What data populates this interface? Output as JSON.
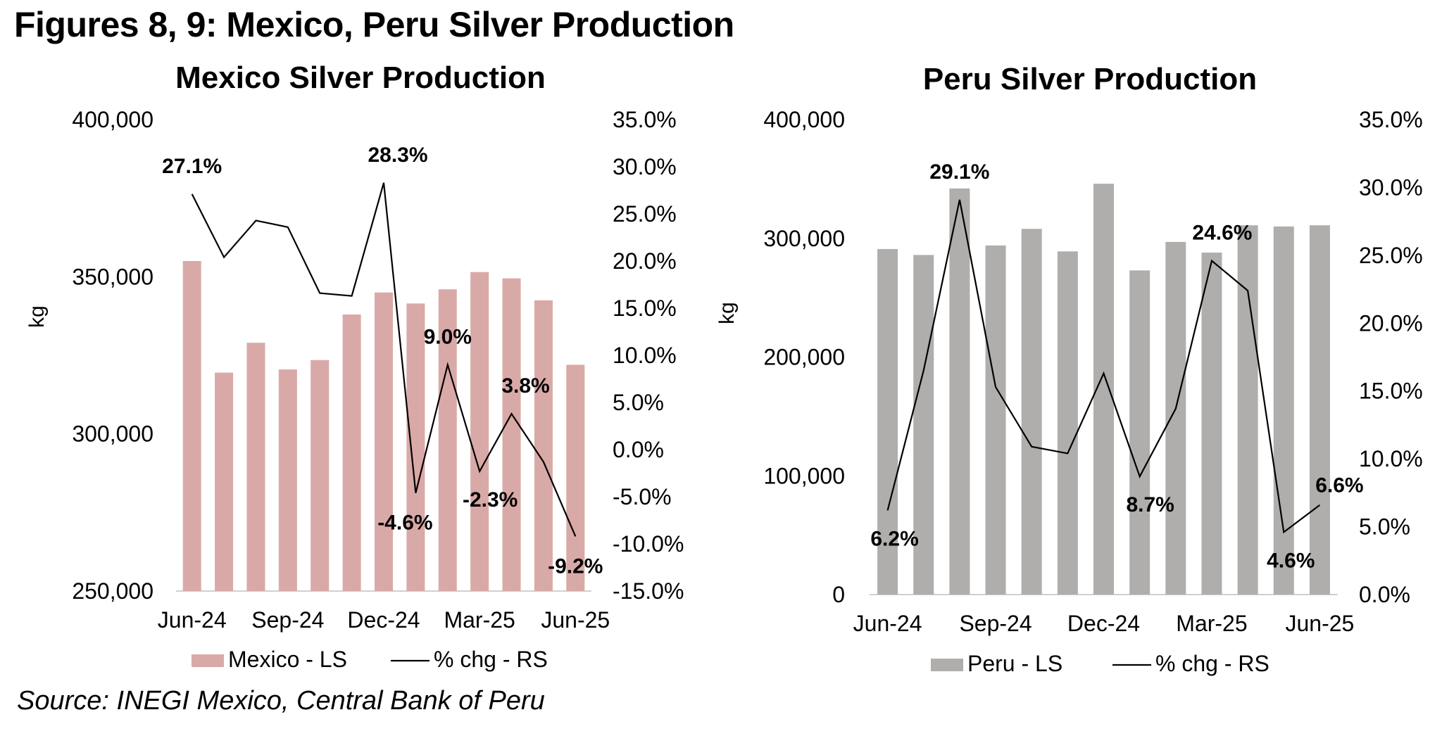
{
  "figure_title": "Figures 8, 9: Mexico, Peru Silver Production",
  "source": "Source: INEGI Mexico, Central Bank of Peru",
  "colors": {
    "mexico_bar": "#d9a9a8",
    "peru_bar": "#b0aeac",
    "line": "#000000"
  },
  "chart_data": [
    {
      "type": "bar",
      "title": "Mexico Silver Production",
      "ylabel": "kg",
      "categories": [
        "Jun-24",
        "Jul-24",
        "Aug-24",
        "Sep-24",
        "Oct-24",
        "Nov-24",
        "Dec-24",
        "Jan-25",
        "Feb-25",
        "Mar-25",
        "Apr-25",
        "May-25",
        "Jun-25"
      ],
      "x_tick_labels": [
        "Jun-24",
        "Sep-24",
        "Dec-24",
        "Mar-25",
        "Jun-25"
      ],
      "left_axis": {
        "ylim": [
          250000,
          400000
        ],
        "ticks": [
          "400,000",
          "350,000",
          "300,000",
          "250,000"
        ]
      },
      "right_axis": {
        "ylim": [
          -15.0,
          35.0
        ],
        "ticks": [
          "35.0%",
          "30.0%",
          "25.0%",
          "20.0%",
          "15.0%",
          "10.0%",
          "5.0%",
          "0.0%",
          "-5.0%",
          "-10.0%",
          "-15.0%"
        ]
      },
      "series": [
        {
          "name": "Mexico - LS",
          "kind": "bar",
          "axis": "left",
          "values": [
            355000,
            319500,
            329000,
            320500,
            323500,
            338000,
            345000,
            341500,
            346000,
            351500,
            349500,
            342500,
            322000
          ]
        },
        {
          "name": "% chg - RS",
          "kind": "line",
          "axis": "right",
          "values": [
            27.1,
            20.4,
            24.3,
            23.6,
            16.6,
            16.3,
            28.3,
            -4.6,
            9.0,
            -2.3,
            3.8,
            -1.3,
            -9.2
          ]
        }
      ],
      "annotations": [
        {
          "index": 0,
          "text": "27.1%"
        },
        {
          "index": 6,
          "text": "28.3%"
        },
        {
          "index": 7,
          "text": "-4.6%"
        },
        {
          "index": 8,
          "text": "9.0%"
        },
        {
          "index": 9,
          "text": "-2.3%"
        },
        {
          "index": 10,
          "text": "3.8%"
        },
        {
          "index": 12,
          "text": "-9.2%"
        }
      ]
    },
    {
      "type": "bar",
      "title": "Peru Silver Production",
      "ylabel": "kg",
      "categories": [
        "Jun-24",
        "Jul-24",
        "Aug-24",
        "Sep-24",
        "Oct-24",
        "Nov-24",
        "Dec-24",
        "Jan-25",
        "Feb-25",
        "Mar-25",
        "Apr-25",
        "May-25",
        "Jun-25"
      ],
      "x_tick_labels": [
        "Jun-24",
        "Sep-24",
        "Dec-24",
        "Mar-25",
        "Jun-25"
      ],
      "left_axis": {
        "ylim": [
          0,
          400000
        ],
        "ticks": [
          "400,000",
          "300,000",
          "200,000",
          "100,000",
          "0"
        ]
      },
      "right_axis": {
        "ylim": [
          0.0,
          35.0
        ],
        "ticks": [
          "35.0%",
          "30.0%",
          "25.0%",
          "20.0%",
          "15.0%",
          "10.0%",
          "5.0%",
          "0.0%"
        ]
      },
      "series": [
        {
          "name": "Peru - LS",
          "kind": "bar",
          "axis": "left",
          "values": [
            291000,
            286000,
            342000,
            294000,
            308000,
            289000,
            346000,
            273000,
            297000,
            288000,
            311000,
            310000,
            311000
          ]
        },
        {
          "name": "% chg - RS",
          "kind": "line",
          "axis": "right",
          "values": [
            6.2,
            16.5,
            29.1,
            15.3,
            10.9,
            10.4,
            16.3,
            8.7,
            13.7,
            24.6,
            22.4,
            4.6,
            6.6
          ]
        }
      ],
      "annotations": [
        {
          "index": 0,
          "text": "6.2%"
        },
        {
          "index": 2,
          "text": "29.1%"
        },
        {
          "index": 7,
          "text": "8.7%"
        },
        {
          "index": 9,
          "text": "24.6%"
        },
        {
          "index": 11,
          "text": "4.6%"
        },
        {
          "index": 12,
          "text": "6.6%"
        }
      ]
    }
  ]
}
